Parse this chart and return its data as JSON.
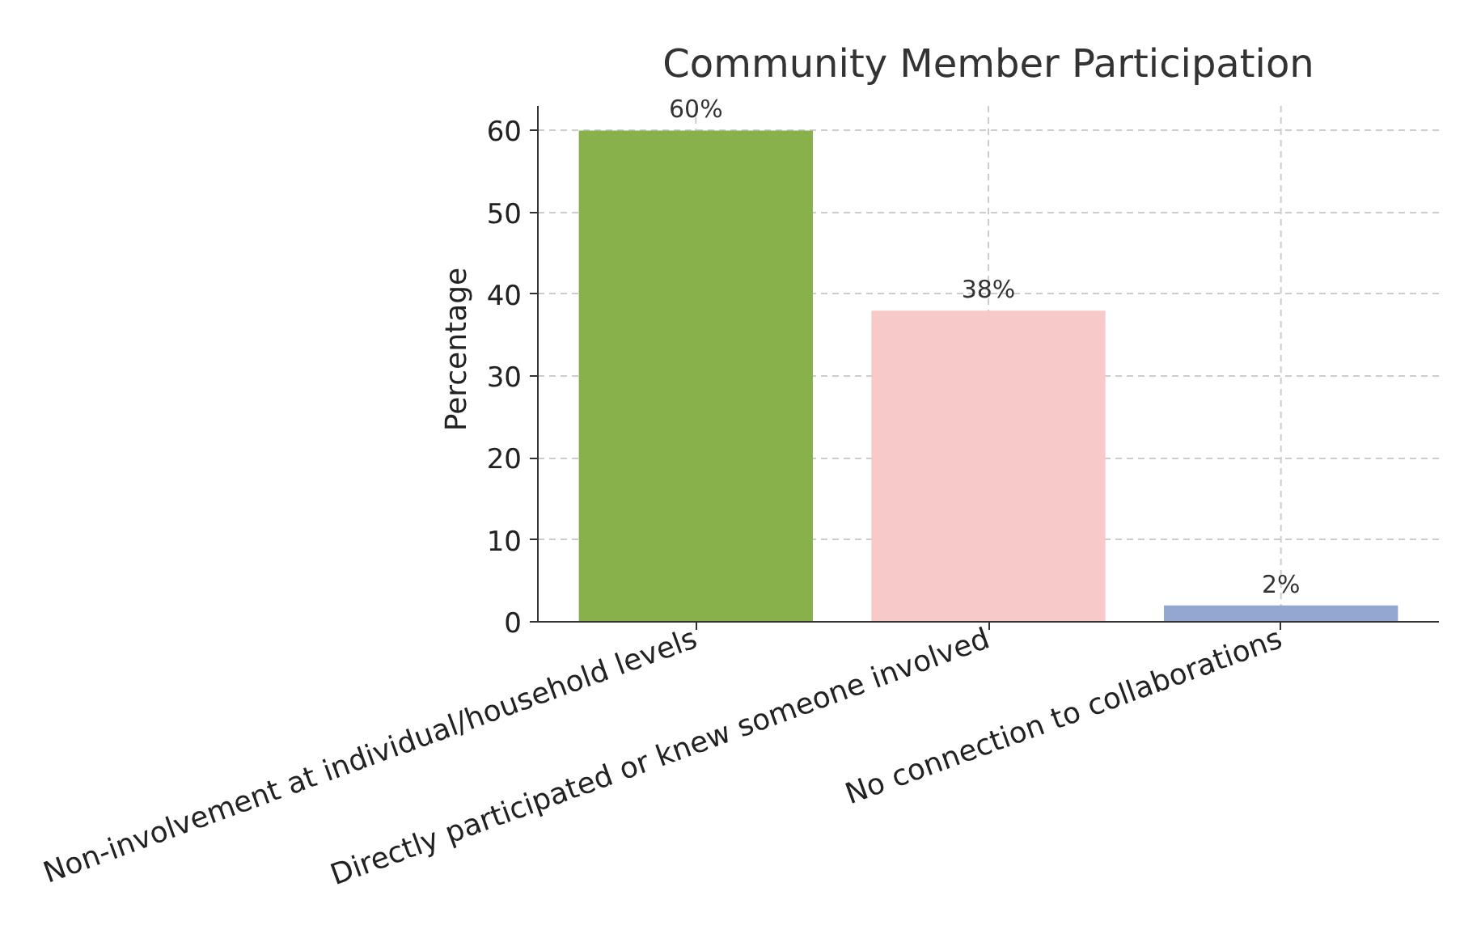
{
  "chart_data": {
    "type": "bar",
    "title": "Community Member Participation",
    "ylabel": "Percentage",
    "categories": [
      "Non-involvement at individual/household levels",
      "Directly participated or knew someone involved",
      "No connection to collaborations"
    ],
    "values": [
      60,
      38,
      2
    ],
    "colors": [
      "#88b04b",
      "#f7cac9",
      "#92a8d1"
    ],
    "ylim": [
      0,
      63
    ],
    "yticks": [
      0,
      10,
      20,
      30,
      40,
      50,
      60
    ],
    "grid": true,
    "value_labels": [
      "60%",
      "38%",
      "2%"
    ]
  }
}
